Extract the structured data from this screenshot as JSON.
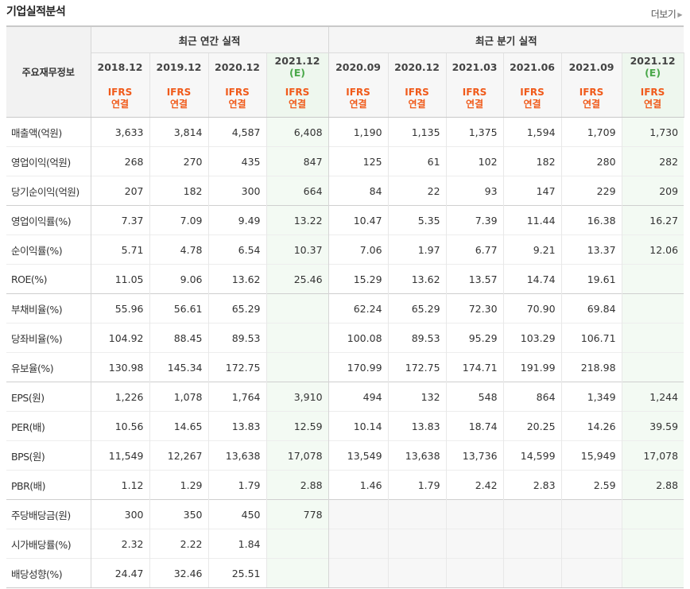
{
  "header": {
    "title": "기업실적분석",
    "more_label": "더보기"
  },
  "table": {
    "item_header": "주요재무정보",
    "groups": {
      "annual": "최근 연간 실적",
      "quarter": "최근 분기 실적"
    },
    "periods": [
      {
        "label": "2018.12",
        "est": false
      },
      {
        "label": "2019.12",
        "est": false
      },
      {
        "label": "2020.12",
        "est": false
      },
      {
        "label": "2021.12",
        "est": true
      },
      {
        "label": "2020.09",
        "est": false
      },
      {
        "label": "2020.12",
        "est": false
      },
      {
        "label": "2021.03",
        "est": false
      },
      {
        "label": "2021.06",
        "est": false
      },
      {
        "label": "2021.09",
        "est": false
      },
      {
        "label": "2021.12",
        "est": true
      }
    ],
    "estimate_mark": "(E)",
    "basis_line1": "IFRS",
    "basis_line2": "연결",
    "rows": [
      {
        "label": "매출액(억원)",
        "values": [
          "3,633",
          "3,814",
          "4,587",
          "6,408",
          "1,190",
          "1,135",
          "1,375",
          "1,594",
          "1,709",
          "1,730"
        ]
      },
      {
        "label": "영업이익(억원)",
        "values": [
          "268",
          "270",
          "435",
          "847",
          "125",
          "61",
          "102",
          "182",
          "280",
          "282"
        ]
      },
      {
        "label": "당기순이익(억원)",
        "values": [
          "207",
          "182",
          "300",
          "664",
          "84",
          "22",
          "93",
          "147",
          "229",
          "209"
        ]
      },
      {
        "label": "영업이익률(%)",
        "values": [
          "7.37",
          "7.09",
          "9.49",
          "13.22",
          "10.47",
          "5.35",
          "7.39",
          "11.44",
          "16.38",
          "16.27"
        ]
      },
      {
        "label": "순이익률(%)",
        "values": [
          "5.71",
          "4.78",
          "6.54",
          "10.37",
          "7.06",
          "1.97",
          "6.77",
          "9.21",
          "13.37",
          "12.06"
        ]
      },
      {
        "label": "ROE(%)",
        "values": [
          "11.05",
          "9.06",
          "13.62",
          "25.46",
          "15.29",
          "13.62",
          "13.57",
          "14.74",
          "19.61",
          ""
        ]
      },
      {
        "label": "부채비율(%)",
        "values": [
          "55.96",
          "56.61",
          "65.29",
          "",
          "62.24",
          "65.29",
          "72.30",
          "70.90",
          "69.84",
          ""
        ]
      },
      {
        "label": "당좌비율(%)",
        "values": [
          "104.92",
          "88.45",
          "89.53",
          "",
          "100.08",
          "89.53",
          "95.29",
          "103.29",
          "106.71",
          ""
        ]
      },
      {
        "label": "유보율(%)",
        "values": [
          "130.98",
          "145.34",
          "172.75",
          "",
          "170.99",
          "172.75",
          "174.71",
          "191.99",
          "218.98",
          ""
        ]
      },
      {
        "label": "EPS(원)",
        "values": [
          "1,226",
          "1,078",
          "1,764",
          "3,910",
          "494",
          "132",
          "548",
          "864",
          "1,349",
          "1,244"
        ]
      },
      {
        "label": "PER(배)",
        "values": [
          "10.56",
          "14.65",
          "13.83",
          "12.59",
          "10.14",
          "13.83",
          "18.74",
          "20.25",
          "14.26",
          "39.59"
        ]
      },
      {
        "label": "BPS(원)",
        "values": [
          "11,549",
          "12,267",
          "13,638",
          "17,078",
          "13,549",
          "13,638",
          "13,736",
          "14,599",
          "15,949",
          "17,078"
        ]
      },
      {
        "label": "PBR(배)",
        "values": [
          "1.12",
          "1.29",
          "1.79",
          "2.88",
          "1.46",
          "1.79",
          "2.42",
          "2.83",
          "2.59",
          "2.88"
        ]
      },
      {
        "label": "주당배당금(원)",
        "values": [
          "300",
          "350",
          "450",
          "778",
          "",
          "",
          "",
          "",
          "",
          ""
        ]
      },
      {
        "label": "시가배당률(%)",
        "values": [
          "2.32",
          "2.22",
          "1.84",
          "",
          "",
          "",
          "",
          "",
          "",
          ""
        ]
      },
      {
        "label": "배당성향(%)",
        "values": [
          "24.47",
          "32.46",
          "25.51",
          "",
          "",
          "",
          "",
          "",
          "",
          ""
        ]
      }
    ]
  }
}
